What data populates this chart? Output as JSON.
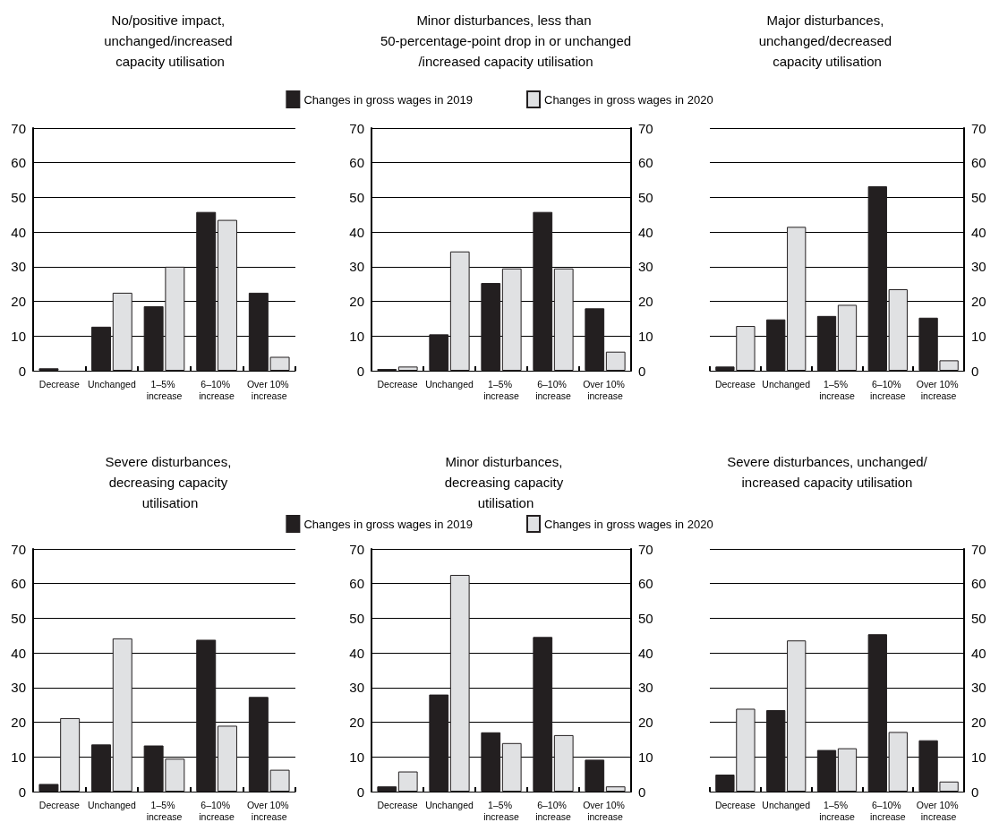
{
  "chart_data": [
    {
      "type": "bar",
      "title": "No/positive impact, unchanged/increased capacity utilisation",
      "categories": [
        "Decrease",
        "Unchanged",
        "1–5% increase",
        "6–10% increase",
        "Over 10% increase"
      ],
      "series": [
        {
          "color": "#231f20",
          "values": [
            0.7,
            12.7,
            18.6,
            45.8,
            22.5
          ]
        },
        {
          "color": "#e0e1e3",
          "values": [
            0,
            22.5,
            30,
            43.5,
            4
          ]
        }
      ],
      "ylim": [
        0,
        70
      ],
      "yticks": [
        0,
        10,
        20,
        30,
        40,
        50,
        60,
        70
      ],
      "grid": "y"
    },
    {
      "type": "bar",
      "title": "Minor disturbances, less than 50-percentage-point drop in or unchanged/increased capacity utilisation",
      "categories": [
        "Decrease",
        "Unchanged",
        "1–5% increase",
        "6–10% increase",
        "Over 10% increase"
      ],
      "series": [
        {
          "name": "Changes in gross wages in 2019",
          "color": "#231f20",
          "values": [
            0.5,
            10.5,
            25.3,
            45.8,
            18
          ]
        },
        {
          "name": "Changes in gross wages in 2020",
          "color": "#e0e1e3",
          "values": [
            1.2,
            34.4,
            29.5,
            29.5,
            5.5
          ]
        }
      ],
      "ylim": [
        0,
        70
      ],
      "yticks": [
        0,
        10,
        20,
        30,
        40,
        50,
        60,
        70
      ],
      "y2lim": [
        0,
        70
      ],
      "y2ticks": [
        0,
        10,
        20,
        30,
        40,
        50,
        60,
        70
      ],
      "grid": "y",
      "legend": "top"
    },
    {
      "type": "bar",
      "title": "Major disturbances, unchanged/decreased capacity utilisation",
      "categories": [
        "Decrease",
        "Unchanged",
        "1–5% increase",
        "6–10% increase",
        "Over 10% increase"
      ],
      "series": [
        {
          "color": "#231f20",
          "axis": "y2",
          "values": [
            1.2,
            14.8,
            15.8,
            53.2,
            15.3
          ]
        },
        {
          "color": "#e0e1e3",
          "axis": "y2",
          "values": [
            12.9,
            41.5,
            19,
            23.5,
            3
          ]
        }
      ],
      "y2lim": [
        0,
        70
      ],
      "y2ticks": [
        0,
        10,
        20,
        30,
        40,
        50,
        60,
        70
      ],
      "grid": "y"
    },
    {
      "type": "bar",
      "title": "Severe disturbances, decreasing capacity utilisation",
      "categories": [
        "Decrease",
        "Unchanged",
        "1–5% increase",
        "6–10% increase",
        "Over 10% increase"
      ],
      "series": [
        {
          "color": "#231f20",
          "values": [
            2.2,
            13.6,
            13.3,
            43.8,
            27.3
          ]
        },
        {
          "color": "#e0e1e3",
          "values": [
            21.2,
            44.2,
            9.5,
            19,
            6.3
          ]
        }
      ],
      "ylim": [
        0,
        70
      ],
      "yticks": [
        0,
        10,
        20,
        30,
        40,
        50,
        60,
        70
      ],
      "grid": "y"
    },
    {
      "type": "bar",
      "title": "Minor disturbances, decreasing capacity utilisation",
      "categories": [
        "Decrease",
        "Unchanged",
        "1–5% increase",
        "6–10% increase",
        "Over 10% increase"
      ],
      "series": [
        {
          "name": "Changes in gross wages in 2019",
          "color": "#231f20",
          "values": [
            1.5,
            28,
            17.1,
            44.6,
            9.2
          ]
        },
        {
          "name": "Changes in gross wages in 2020",
          "color": "#e0e1e3",
          "values": [
            5.8,
            62.5,
            14,
            16.3,
            1.5
          ]
        }
      ],
      "ylim": [
        0,
        70
      ],
      "yticks": [
        0,
        10,
        20,
        30,
        40,
        50,
        60,
        70
      ],
      "y2lim": [
        0,
        70
      ],
      "y2ticks": [
        0,
        10,
        20,
        30,
        40,
        50,
        60,
        70
      ],
      "grid": "y",
      "legend": "top"
    },
    {
      "type": "bar",
      "title": "Severe disturbances, unchanged/increased capacity utilisation",
      "categories": [
        "Decrease",
        "Unchanged",
        "1–5% increase",
        "6–10% increase",
        "Over 10% increase"
      ],
      "series": [
        {
          "color": "#231f20",
          "axis": "y2",
          "values": [
            4.9,
            23.5,
            12,
            45.4,
            14.8
          ]
        },
        {
          "color": "#e0e1e3",
          "axis": "y2",
          "values": [
            23.9,
            43.6,
            12.5,
            17.2,
            2.9
          ]
        }
      ],
      "y2lim": [
        0,
        70
      ],
      "y2ticks": [
        0,
        10,
        20,
        30,
        40,
        50,
        60,
        70
      ],
      "grid": "y"
    }
  ]
}
